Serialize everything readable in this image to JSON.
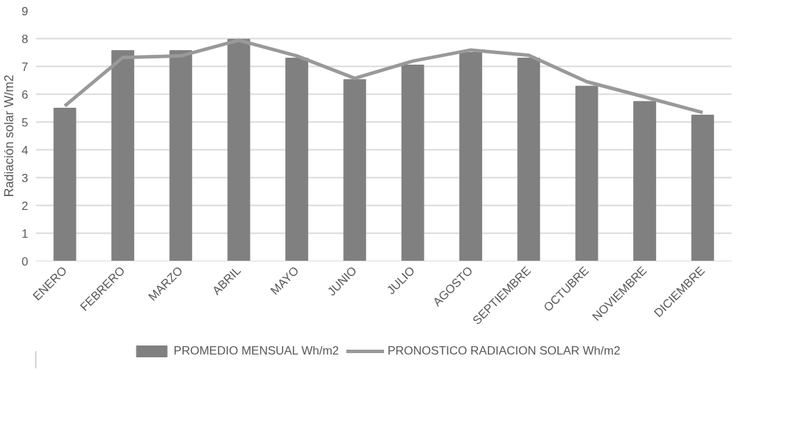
{
  "chart_data": {
    "type": "bar",
    "ylabel": "Radiación solar W/m2",
    "categories": [
      "ENERO",
      "FEBRERO",
      "MARZO",
      "ABRIL",
      "MAYO",
      "JUNIO",
      "JULIO",
      "AGOSTO",
      "SEPTIEMBRE",
      "OCTUBRE",
      "NOVIEMBRE",
      "DICIEMBRE"
    ],
    "series": [
      {
        "name": "PROMEDIO MENSUAL Wh/m2",
        "color": "#808080",
        "values": [
          5.5,
          7.57,
          7.57,
          7.98,
          7.3,
          6.53,
          7.05,
          7.5,
          7.3,
          6.29,
          5.74,
          5.25
        ]
      },
      {
        "name": "PRONOSTICO RADIACION SOLAR Wh/m2",
        "type": "line",
        "color": "#999999",
        "values": [
          5.58,
          7.32,
          7.38,
          7.94,
          7.38,
          6.57,
          7.19,
          7.59,
          7.4,
          6.45,
          5.9,
          5.34
        ]
      }
    ],
    "ylim": [
      0,
      9
    ],
    "yticks": [
      0,
      1,
      2,
      3,
      4,
      5,
      6,
      7,
      8,
      9
    ],
    "grid": "y",
    "legend": "bottom",
    "line_style": "solid",
    "marker": "none"
  }
}
